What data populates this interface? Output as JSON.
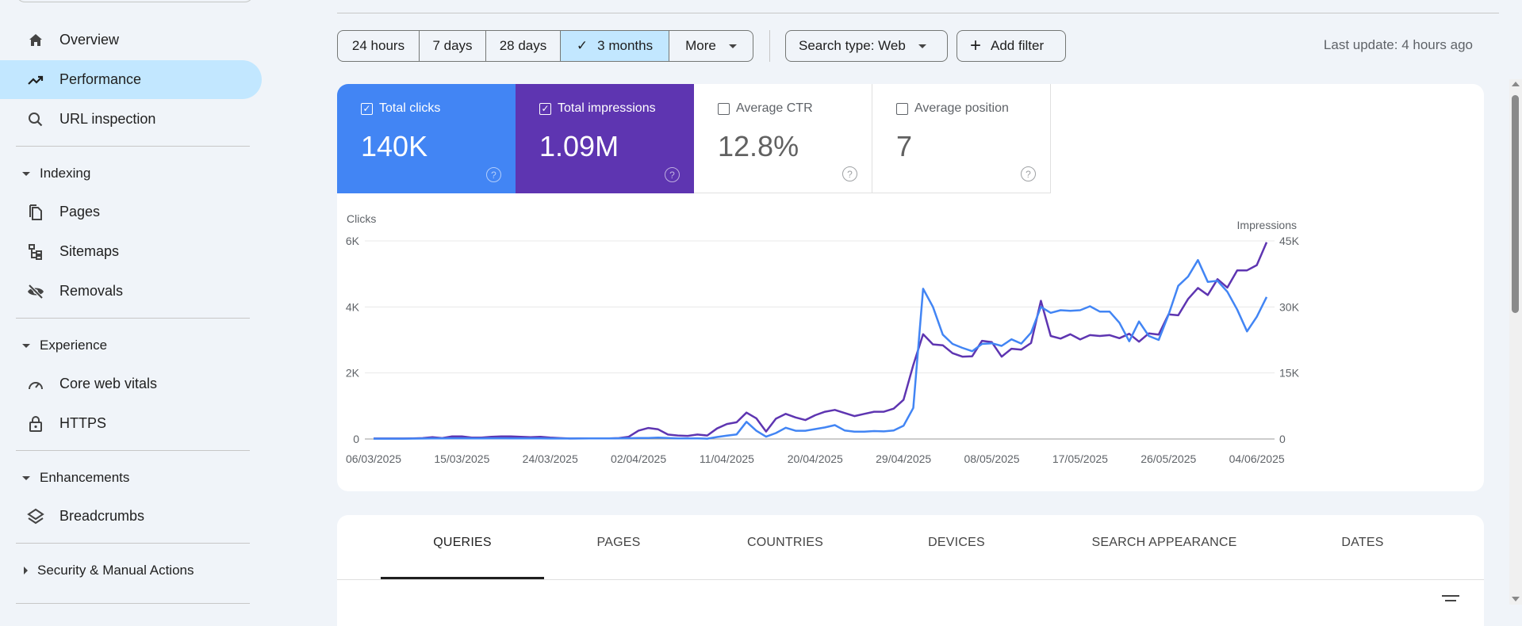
{
  "sidebar": {
    "items": [
      {
        "label": "Overview",
        "icon": "home-icon"
      },
      {
        "label": "Performance",
        "icon": "trending-up-icon",
        "active": true
      },
      {
        "label": "URL inspection",
        "icon": "search-icon"
      }
    ],
    "sections": [
      {
        "label": "Indexing",
        "expanded": true,
        "items": [
          {
            "label": "Pages",
            "icon": "pages-icon"
          },
          {
            "label": "Sitemaps",
            "icon": "sitemap-icon"
          },
          {
            "label": "Removals",
            "icon": "eye-off-icon"
          }
        ]
      },
      {
        "label": "Experience",
        "expanded": true,
        "items": [
          {
            "label": "Core web vitals",
            "icon": "speed-icon"
          },
          {
            "label": "HTTPS",
            "icon": "lock-icon"
          }
        ]
      },
      {
        "label": "Enhancements",
        "expanded": true,
        "items": [
          {
            "label": "Breadcrumbs",
            "icon": "layers-icon"
          }
        ]
      },
      {
        "label": "Security & Manual Actions",
        "expanded": false,
        "items": []
      }
    ]
  },
  "toolbar": {
    "ranges": [
      "24 hours",
      "7 days",
      "28 days",
      "3 months",
      "More"
    ],
    "selected_range": "3 months",
    "search_type": "Search type: Web",
    "add_filter": "Add filter",
    "last_update": "Last update: 4 hours ago"
  },
  "metrics": [
    {
      "label": "Total clicks",
      "value": "140K",
      "checked": true,
      "color": "#4285f4"
    },
    {
      "label": "Total impressions",
      "value": "1.09M",
      "checked": true,
      "color": "#5e35b1"
    },
    {
      "label": "Average CTR",
      "value": "12.8%",
      "checked": false
    },
    {
      "label": "Average position",
      "value": "7",
      "checked": false
    }
  ],
  "tabs": [
    "QUERIES",
    "PAGES",
    "COUNTRIES",
    "DEVICES",
    "SEARCH APPEARANCE",
    "DATES"
  ],
  "active_tab": "QUERIES",
  "chart_data": {
    "type": "line",
    "ylabel_left": "Clicks",
    "ylabel_right": "Impressions",
    "ylim_left": [
      0,
      6000
    ],
    "ylim_right": [
      0,
      45000
    ],
    "yticks_left": [
      "0",
      "2K",
      "4K",
      "6K"
    ],
    "yticks_right": [
      "0",
      "15K",
      "30K",
      "45K"
    ],
    "xtick_labels": [
      "06/03/2025",
      "15/03/2025",
      "24/03/2025",
      "02/04/2025",
      "11/04/2025",
      "20/04/2025",
      "29/04/2025",
      "08/05/2025",
      "17/05/2025",
      "26/05/2025",
      "04/06/2025"
    ],
    "grid": true,
    "x": [
      "06/03",
      "07/03",
      "08/03",
      "09/03",
      "10/03",
      "11/03",
      "12/03",
      "13/03",
      "14/03",
      "15/03",
      "16/03",
      "17/03",
      "18/03",
      "19/03",
      "20/03",
      "21/03",
      "22/03",
      "23/03",
      "24/03",
      "25/03",
      "26/03",
      "27/03",
      "28/03",
      "29/03",
      "30/03",
      "31/03",
      "01/04",
      "02/04",
      "03/04",
      "04/04",
      "05/04",
      "06/04",
      "07/04",
      "08/04",
      "09/04",
      "10/04",
      "11/04",
      "12/04",
      "13/04",
      "14/04",
      "15/04",
      "16/04",
      "17/04",
      "18/04",
      "19/04",
      "20/04",
      "21/04",
      "22/04",
      "23/04",
      "24/04",
      "25/04",
      "26/04",
      "27/04",
      "28/04",
      "29/04",
      "30/04",
      "01/05",
      "02/05",
      "03/05",
      "04/05",
      "05/05",
      "06/05",
      "07/05",
      "08/05",
      "09/05",
      "10/05",
      "11/05",
      "12/05",
      "13/05",
      "14/05",
      "15/05",
      "16/05",
      "17/05",
      "18/05",
      "19/05",
      "20/05",
      "21/05",
      "22/05",
      "23/05",
      "24/05",
      "25/05",
      "26/05",
      "27/05",
      "28/05",
      "29/05",
      "30/05",
      "31/05",
      "01/06",
      "02/06",
      "03/06",
      "04/06",
      "05/06"
    ],
    "series": [
      {
        "name": "Clicks",
        "axis": "left",
        "color": "#4285f4",
        "values": [
          10,
          10,
          10,
          10,
          12,
          15,
          20,
          18,
          22,
          22,
          20,
          20,
          22,
          22,
          20,
          18,
          18,
          18,
          15,
          15,
          15,
          15,
          18,
          18,
          20,
          22,
          25,
          30,
          30,
          40,
          30,
          20,
          20,
          20,
          10,
          60,
          100,
          140,
          520,
          250,
          70,
          180,
          340,
          250,
          250,
          300,
          350,
          420,
          260,
          220,
          220,
          240,
          230,
          260,
          400,
          940,
          4550,
          4000,
          3160,
          2880,
          2760,
          2660,
          2880,
          2900,
          2820,
          3020,
          2890,
          3220,
          4000,
          3820,
          3900,
          3880,
          3900,
          4020,
          3860,
          3860,
          3520,
          2960,
          3560,
          3120,
          3000,
          3760,
          4640,
          4920,
          5420,
          4760,
          4790,
          4460,
          3920,
          3260,
          3700,
          4300
        ]
      },
      {
        "name": "Impressions",
        "axis": "right",
        "color": "#5e35b1",
        "values": [
          100,
          100,
          100,
          100,
          150,
          200,
          400,
          200,
          600,
          600,
          300,
          300,
          500,
          600,
          600,
          500,
          400,
          500,
          300,
          200,
          100,
          150,
          150,
          150,
          150,
          200,
          500,
          1900,
          2500,
          2200,
          1000,
          800,
          700,
          1000,
          800,
          2400,
          3400,
          3800,
          6000,
          4700,
          1700,
          4600,
          5700,
          4900,
          4300,
          5400,
          6200,
          6600,
          5900,
          5200,
          5700,
          6200,
          6200,
          6900,
          8900,
          16800,
          23800,
          21500,
          21300,
          19500,
          18700,
          18800,
          22300,
          22000,
          18700,
          20500,
          20300,
          21800,
          31400,
          23400,
          22800,
          23800,
          22600,
          23600,
          23400,
          23600,
          22900,
          23900,
          22100,
          24000,
          23700,
          28300,
          28100,
          31800,
          34300,
          32700,
          36300,
          34400,
          38300,
          38300,
          39500,
          44700
        ]
      }
    ]
  }
}
